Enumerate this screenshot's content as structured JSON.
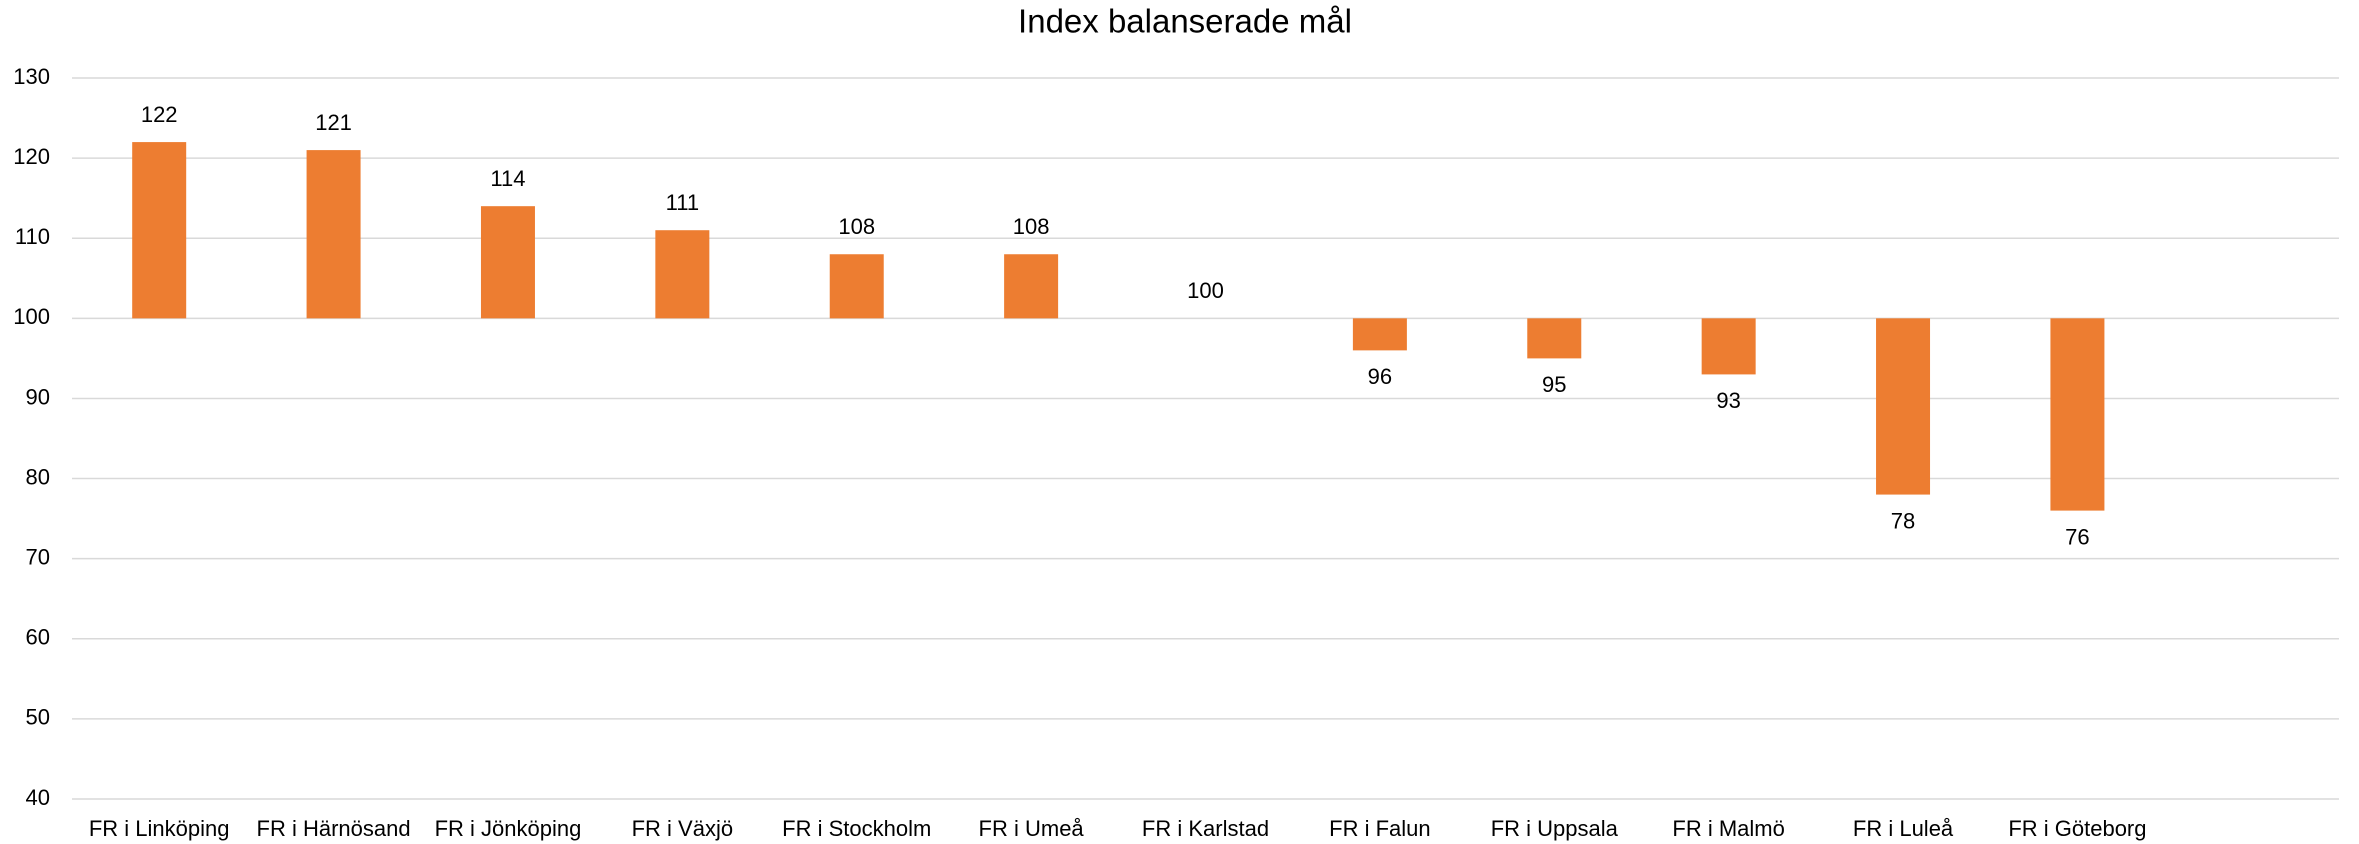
{
  "chart_data": {
    "type": "bar",
    "title": "Index balanserade mål",
    "categories": [
      "FR i Linköping",
      "FR i Härnösand",
      "FR i Jönköping",
      "FR i Växjö",
      "FR i Stockholm",
      "FR i Umeå",
      "FR i Karlstad",
      "FR i Falun",
      "FR i Uppsala",
      "FR i Malmö",
      "FR i Luleå",
      "FR i Göteborg",
      null
    ],
    "values": [
      122,
      121,
      114,
      111,
      108,
      108,
      100,
      96,
      95,
      93,
      78,
      76,
      null
    ],
    "color": "#ed7d31",
    "baseline": 100,
    "ylim": [
      40,
      130
    ],
    "yticks": [
      40,
      50,
      60,
      70,
      80,
      90,
      100,
      110,
      120,
      130
    ],
    "grid": true
  }
}
